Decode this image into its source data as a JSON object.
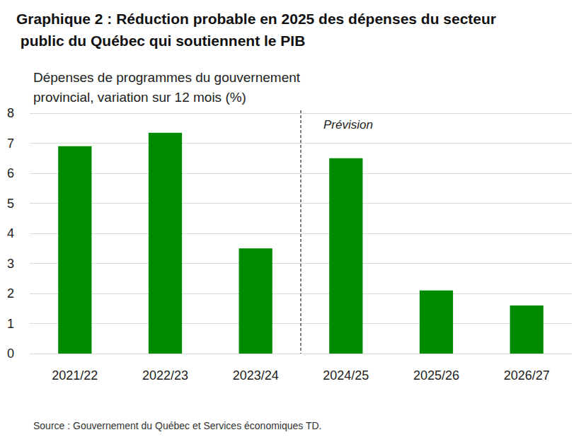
{
  "chart_data": {
    "type": "bar",
    "title": "Graphique 2 : Réduction probable en 2025 des dépenses du secteur public du Québec qui soutiennent le PIB",
    "y_label": "Dépenses de programmes du gouvernement provincial, variation sur 12 mois (%)",
    "categories": [
      "2021/22",
      "2022/23",
      "2023/24",
      "2024/25",
      "2025/26",
      "2026/27"
    ],
    "values": [
      6.9,
      7.35,
      3.5,
      6.5,
      2.1,
      1.6
    ],
    "color": "#008a00",
    "ylim": [
      0,
      8
    ],
    "yticks": [
      0,
      1,
      2,
      3,
      4,
      5,
      6,
      7,
      8
    ],
    "grid": true,
    "annotations": [
      {
        "text": "Prévision",
        "x": "2024/25"
      }
    ],
    "source": "Source : Gouvernement du Québec et Services économiques TD."
  }
}
